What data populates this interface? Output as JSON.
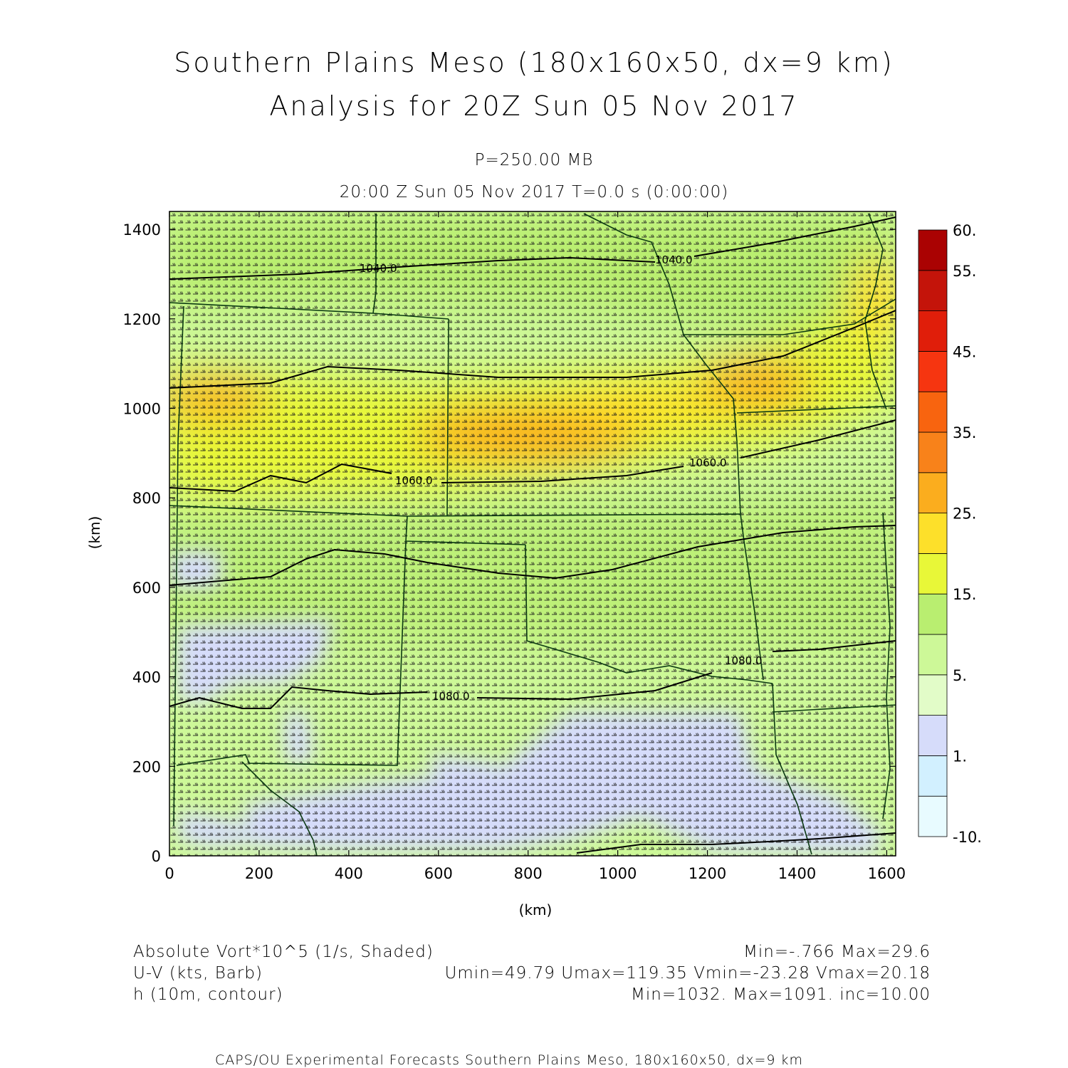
{
  "title": {
    "line1": "Southern Plains Meso (180x160x50, dx=9 km)",
    "line2": "Analysis for 20Z Sun 05 Nov 2017"
  },
  "subtitle": {
    "level": "P=250.00 MB",
    "time": "20:00 Z Sun 05 Nov 2017    T=0.0 s (0:00:00)"
  },
  "axes": {
    "xlabel": "(km)",
    "ylabel": "(km)",
    "xticks": [
      "0",
      "200",
      "400",
      "600",
      "800",
      "1000",
      "1200",
      "1400",
      "1600"
    ],
    "yticks": [
      "0",
      "200",
      "400",
      "600",
      "800",
      "1000",
      "1200",
      "1400"
    ],
    "xrange_km": [
      0,
      1620
    ],
    "yrange_km": [
      0,
      1440
    ]
  },
  "colorbar": {
    "labels": [
      "60.",
      "55.",
      "45.",
      "35.",
      "25.",
      "15.",
      "5.",
      "1.",
      "-10."
    ],
    "colors": [
      "#e8fbff",
      "#d2f0ff",
      "#d6dcfa",
      "#e2fcc8",
      "#cdf898",
      "#b9ee70",
      "#e8f738",
      "#fde02a",
      "#fbad1e",
      "#f8821a",
      "#f8640f",
      "#f63510",
      "#e01e0a",
      "#c4140a",
      "#aa0202"
    ]
  },
  "contours": {
    "labels": [
      "1040.0",
      "1040.0",
      "1060.0",
      "1060.0",
      "1080.0",
      "1080.0"
    ]
  },
  "legend": {
    "row1_left": "Absolute Vort*10^5 (1/s, Shaded)",
    "row1_right": "Min=-.766 Max=29.6",
    "row2_left": "U-V (kts, Barb)",
    "row2_right": "Umin=49.79 Umax=119.35 Vmin=-23.28 Vmax=20.18",
    "row3_left": "h (10m, contour)",
    "row3_right": "Min=1032. Max=1091. inc=10.00"
  },
  "footer": "CAPS/OU Experimental Forecasts  Southern Plains Meso, 180x160x50, dx=9 km"
}
